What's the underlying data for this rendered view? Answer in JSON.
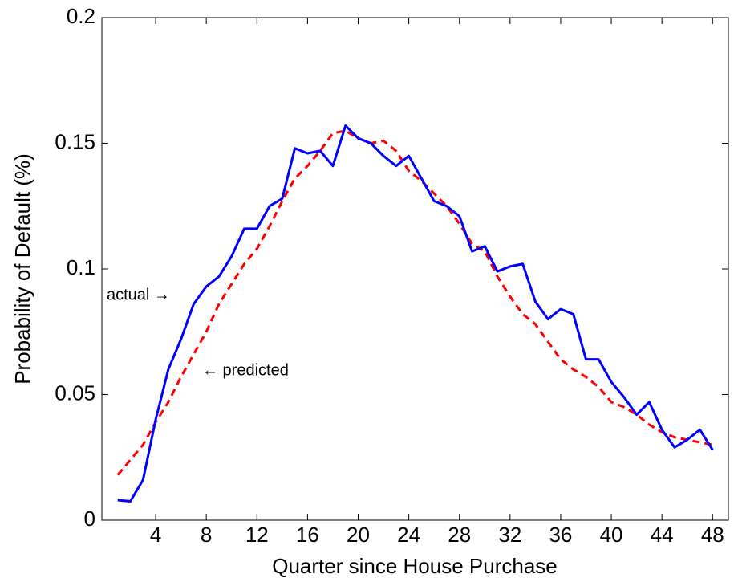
{
  "chart_data": {
    "type": "line",
    "xlabel": "Quarter since House Purchase",
    "ylabel": "Probability of Default (%)",
    "x": [
      1,
      2,
      3,
      4,
      5,
      6,
      7,
      8,
      9,
      10,
      11,
      12,
      13,
      14,
      15,
      16,
      17,
      18,
      19,
      20,
      21,
      22,
      23,
      24,
      25,
      26,
      27,
      28,
      29,
      30,
      31,
      32,
      33,
      34,
      35,
      36,
      37,
      38,
      39,
      40,
      41,
      42,
      43,
      44,
      45,
      46,
      47,
      48
    ],
    "series": [
      {
        "name": "actual",
        "color": "#0000ff",
        "dash": false,
        "values": [
          0.008,
          0.0075,
          0.016,
          0.04,
          0.06,
          0.072,
          0.086,
          0.093,
          0.097,
          0.105,
          0.116,
          0.116,
          0.125,
          0.128,
          0.148,
          0.146,
          0.147,
          0.141,
          0.157,
          0.152,
          0.15,
          0.145,
          0.141,
          0.145,
          0.136,
          0.127,
          0.125,
          0.121,
          0.107,
          0.109,
          0.099,
          0.101,
          0.102,
          0.087,
          0.08,
          0.084,
          0.082,
          0.064,
          0.064,
          0.055,
          0.049,
          0.042,
          0.047,
          0.036,
          0.029,
          0.032,
          0.036,
          0.028
        ]
      },
      {
        "name": "predicted",
        "color": "#ff0000",
        "dash": true,
        "values": [
          0.018,
          0.024,
          0.03,
          0.039,
          0.047,
          0.057,
          0.066,
          0.075,
          0.086,
          0.094,
          0.102,
          0.108,
          0.117,
          0.127,
          0.136,
          0.141,
          0.147,
          0.154,
          0.155,
          0.152,
          0.15,
          0.151,
          0.147,
          0.139,
          0.135,
          0.13,
          0.125,
          0.118,
          0.11,
          0.107,
          0.097,
          0.089,
          0.082,
          0.078,
          0.071,
          0.064,
          0.06,
          0.057,
          0.053,
          0.047,
          0.045,
          0.042,
          0.038,
          0.035,
          0.033,
          0.032,
          0.031,
          0.03
        ]
      }
    ],
    "annotations": [
      "actual →",
      "← predicted"
    ],
    "xlim": [
      -0.25,
      49.25
    ],
    "xticks": [
      4,
      8,
      12,
      16,
      20,
      24,
      28,
      32,
      36,
      40,
      44,
      48
    ],
    "ylim": [
      0,
      0.2
    ],
    "yticks": [
      0,
      0.05,
      0.1,
      0.15,
      0.2
    ],
    "grid": false
  }
}
